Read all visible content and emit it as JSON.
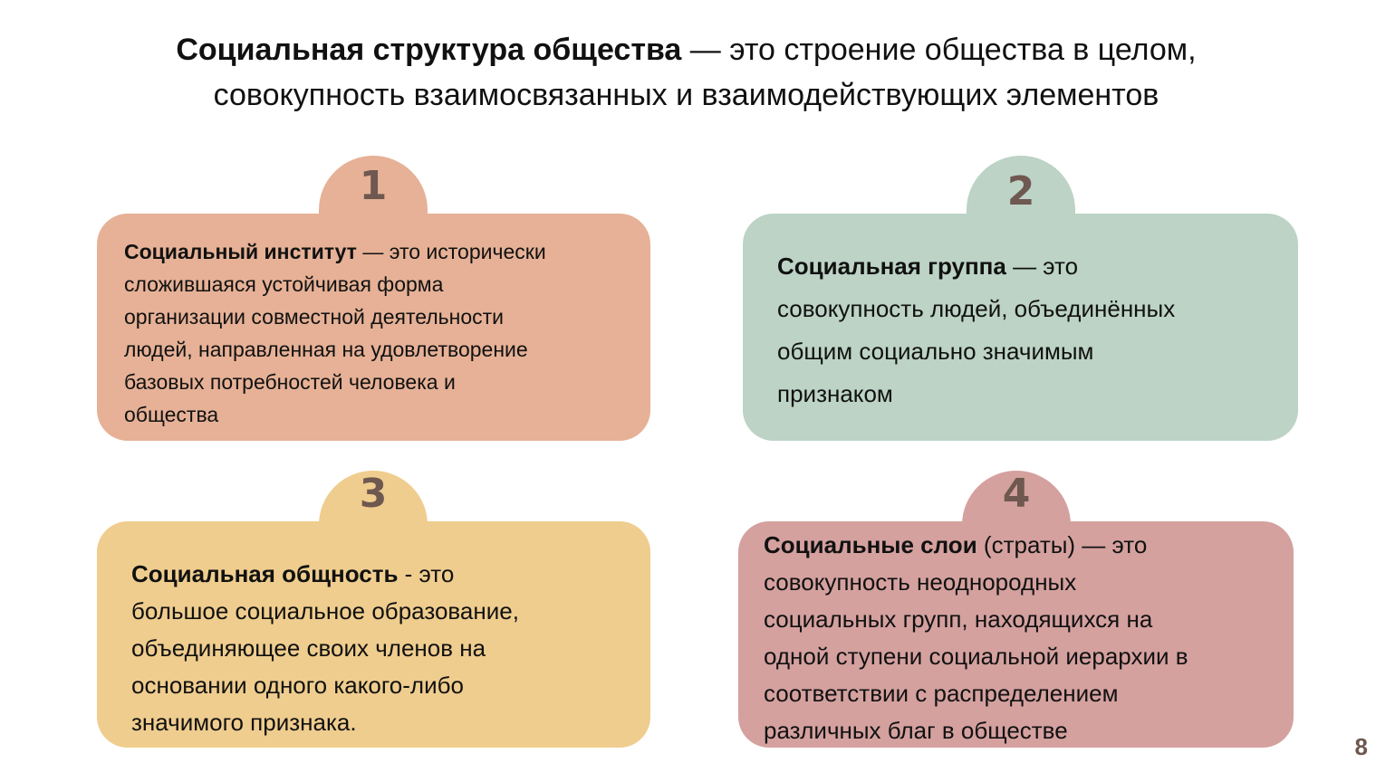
{
  "title": {
    "bold": "Социальная структура общества",
    "rest": " — это строение общества в целом,",
    "line2": "совокупность взаимосвязанных и взаимодействующих элементов"
  },
  "cards": [
    {
      "number": "1",
      "color": "#e6b196",
      "term": "Социальный институт",
      "first_rest": " — это исторически",
      "lines": [
        "сложившаяся устойчивая форма",
        "организации совместной деятельности",
        "людей, направленная на удовлетворение",
        "базовых потребностей человека и",
        "общества"
      ]
    },
    {
      "number": "2",
      "color": "#bcd3c5",
      "term": "Социальная группа",
      "first_rest": " — это",
      "lines": [
        "совокупность людей, объединённых",
        "общим социально значимым",
        "признаком"
      ]
    },
    {
      "number": "3",
      "color": "#efcd8e",
      "term": "Социальная общность",
      "first_rest": " - это",
      "lines": [
        "большое социальное образование,",
        "объединяющее своих членов на",
        "основании одного какого-либо",
        "значимого признака."
      ]
    },
    {
      "number": "4",
      "color": "#d4a19f",
      "term": "Социальные слои",
      "first_rest": " (страты) — это",
      "lines": [
        "совокупность неоднородных",
        "социальных групп, находящихся на",
        "одной ступени социальной иерархии в",
        "соответствии с распределением",
        "различных благ в обществе"
      ]
    }
  ],
  "page_number": "8"
}
